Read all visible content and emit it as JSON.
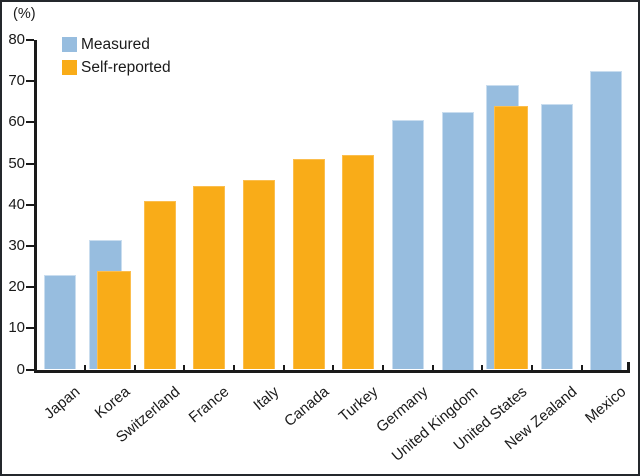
{
  "chart_data": {
    "type": "bar",
    "title": "",
    "ylabel": "(%)",
    "xlabel": "",
    "ylim": [
      0,
      80
    ],
    "yticks": [
      0,
      10,
      20,
      30,
      40,
      50,
      60,
      70,
      80
    ],
    "grid": false,
    "legend_position": "top-left",
    "categories": [
      "Japan",
      "Korea",
      "Switzerland",
      "France",
      "Italy",
      "Canada",
      "Turkey",
      "Germany",
      "United Kingdom",
      "United States",
      "New Zealand",
      "Mexico"
    ],
    "series": [
      {
        "name": "Measured",
        "color": "#97BDDF",
        "values": [
          23,
          31.5,
          null,
          null,
          null,
          null,
          null,
          60.5,
          62.5,
          69,
          64.5,
          72.5
        ]
      },
      {
        "name": "Self-reported",
        "color": "#F9AC18",
        "values": [
          null,
          24,
          41,
          44.5,
          46,
          51,
          52,
          null,
          null,
          64,
          null,
          null
        ]
      }
    ]
  }
}
